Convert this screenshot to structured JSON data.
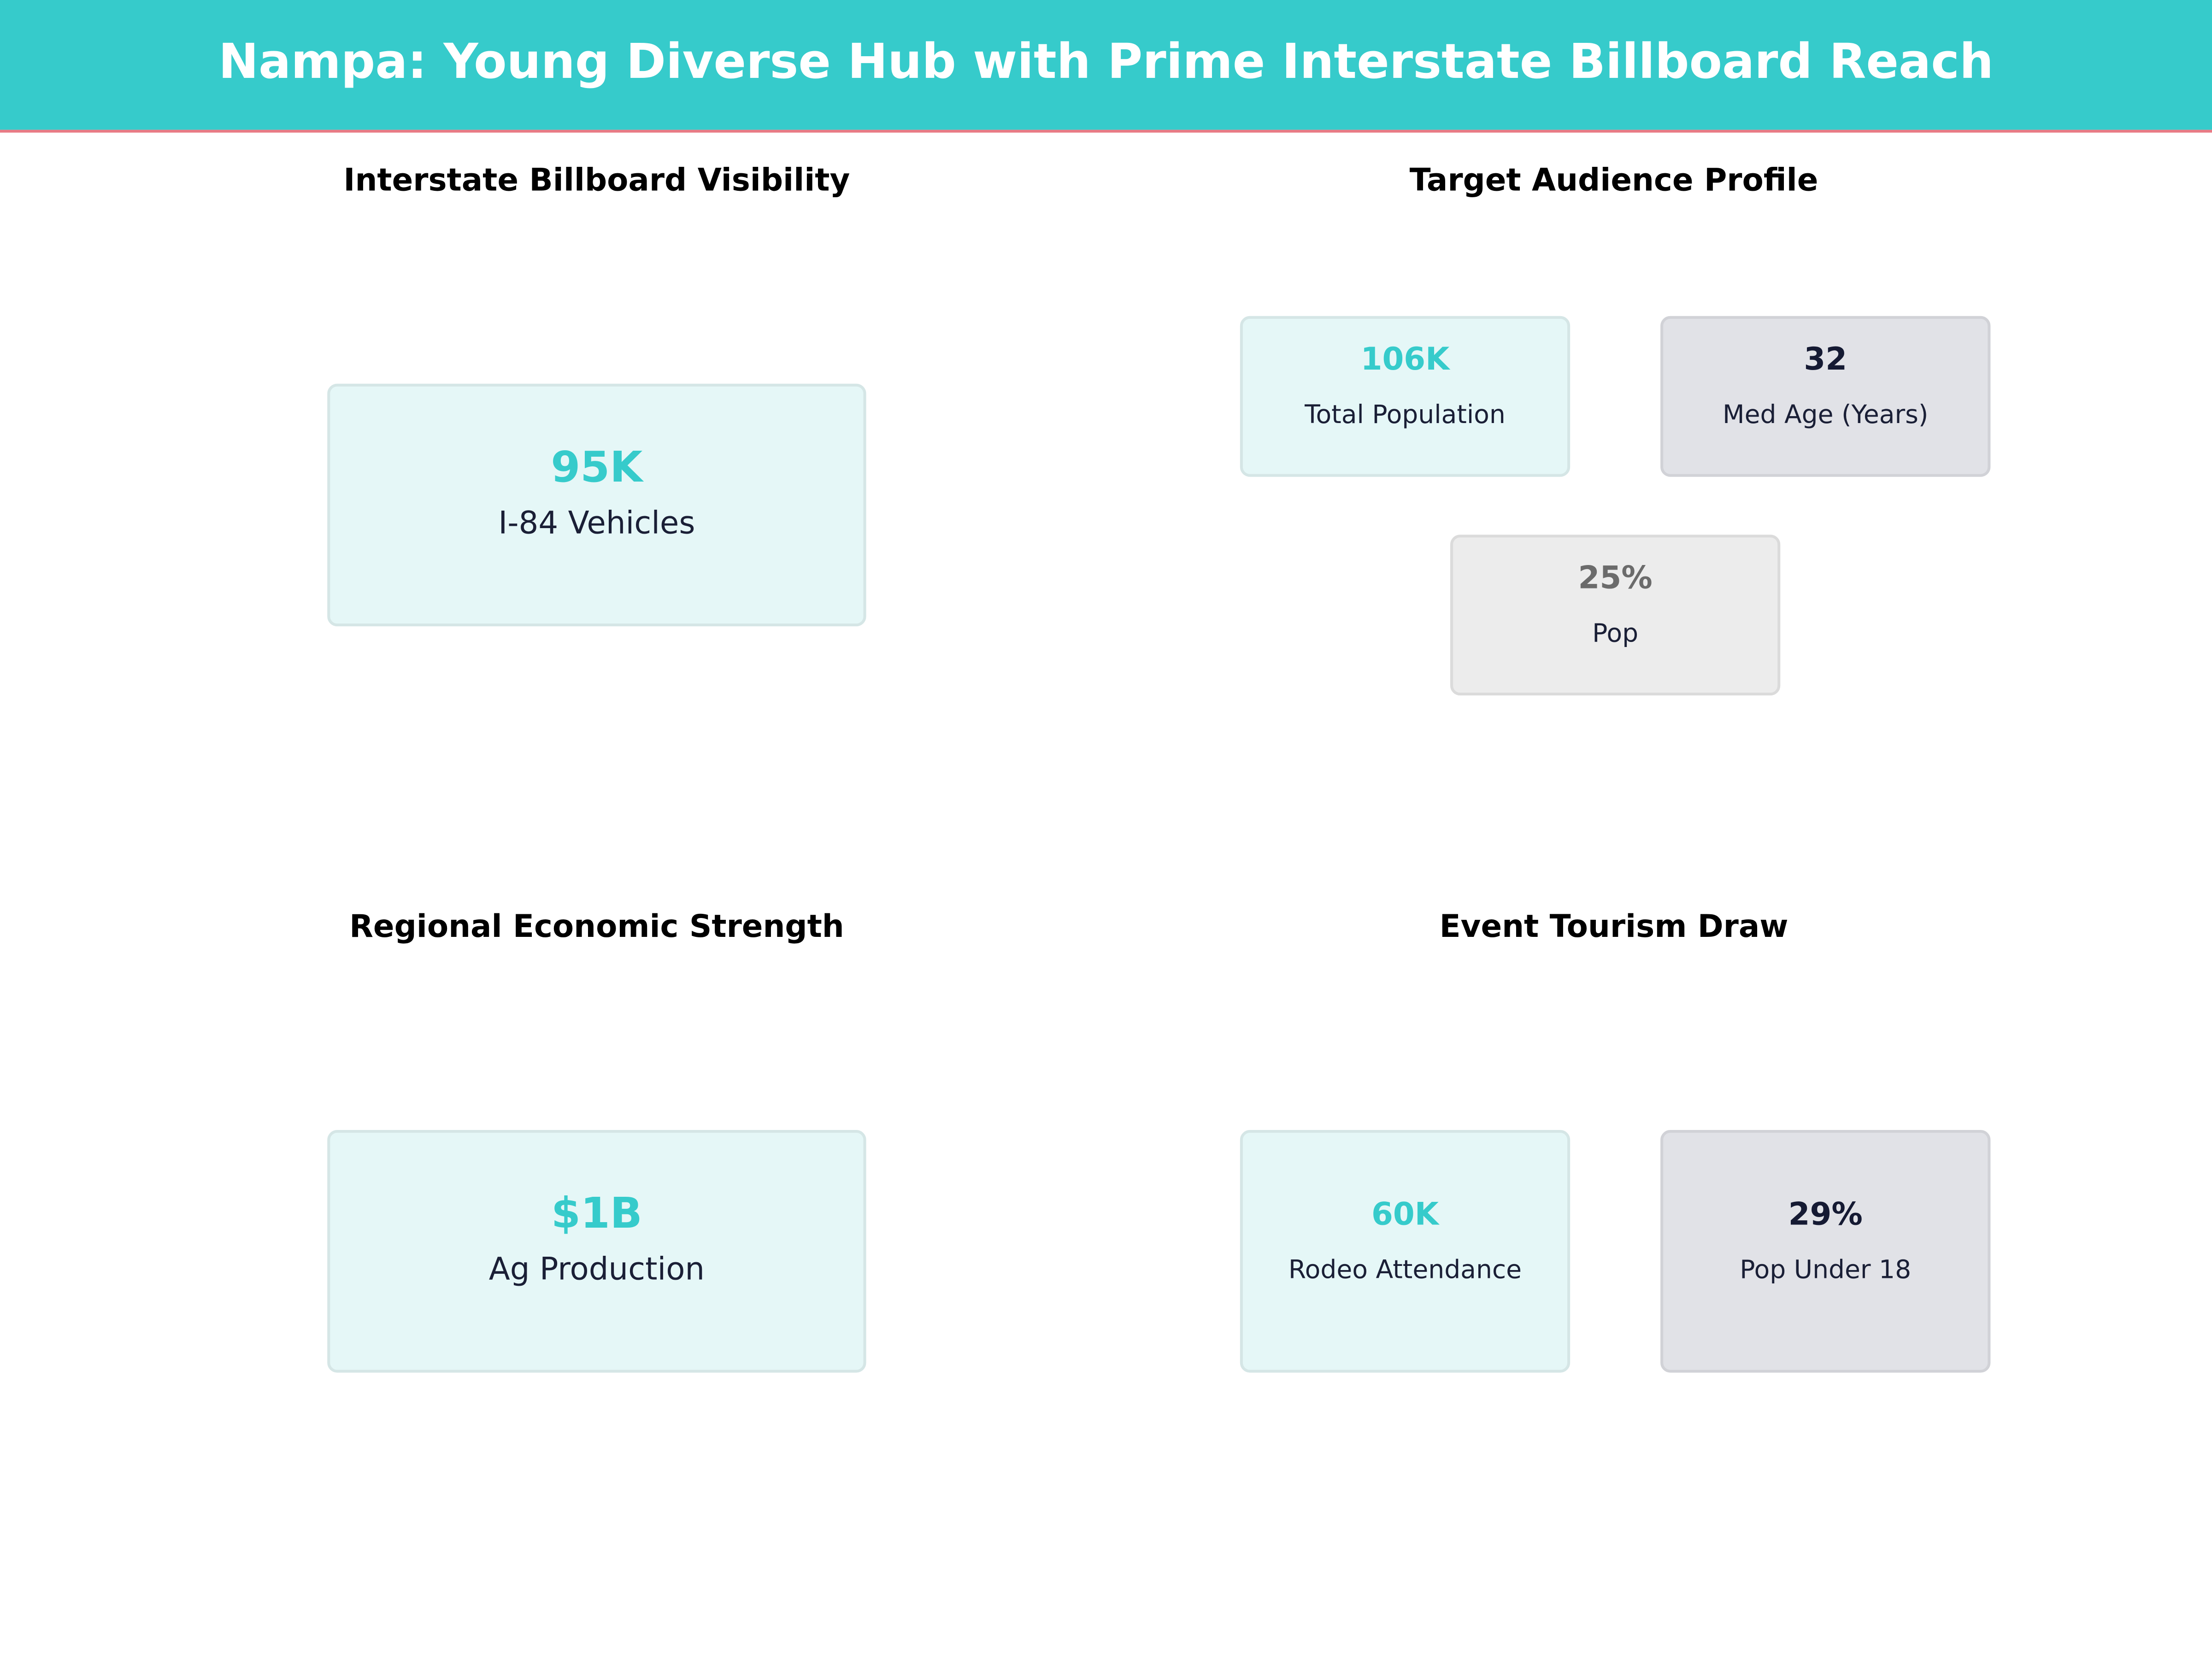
{
  "header": {
    "title": "Nampa: Young Diverse Hub with Prime Interstate Billboard Reach"
  },
  "panels": [
    {
      "title": "Interstate Billboard Visibility",
      "cards": [
        {
          "value": "95K",
          "label": "I-84 Vehicles",
          "color": "#36cbcb",
          "fill": "#e5f7f7"
        }
      ]
    },
    {
      "title": "Target Audience Profile",
      "cards": [
        {
          "value": "106K",
          "label": "Total Population",
          "color": "#36cbcb",
          "fill": "#e5f7f7"
        },
        {
          "value": "32",
          "label": "Med Age (Years)",
          "color": "#151a33",
          "fill": "#e1e2e7"
        },
        {
          "value": "25%",
          "label": "Pop",
          "color": "#6b6b6b",
          "fill": "#ececec"
        }
      ]
    },
    {
      "title": "Regional Economic Strength",
      "cards": [
        {
          "value": "$1B",
          "label": "Ag Production",
          "color": "#36cbcb",
          "fill": "#e5f7f7"
        }
      ]
    },
    {
      "title": "Event Tourism Draw",
      "cards": [
        {
          "value": "60K",
          "label": "Rodeo Attendance",
          "color": "#36cbcb",
          "fill": "#e5f7f7"
        },
        {
          "value": "29%",
          "label": "Pop Under 18",
          "color": "#151a33",
          "fill": "#e1e2e7"
        }
      ]
    }
  ]
}
